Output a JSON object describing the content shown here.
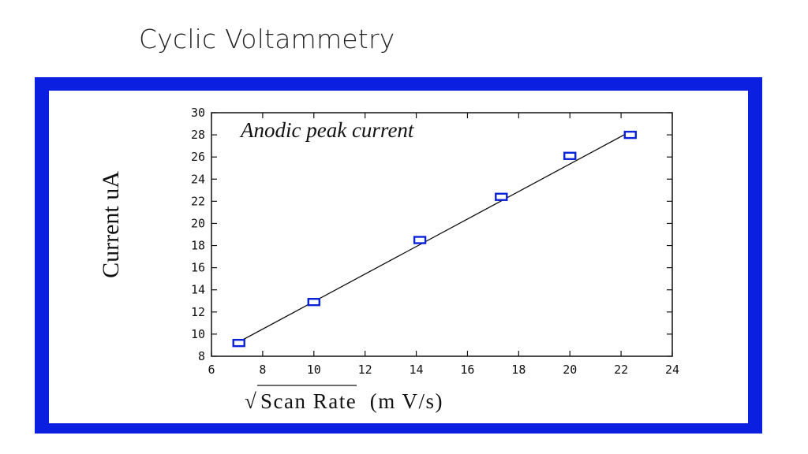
{
  "slide": {
    "title": "Cyclic Voltammetry"
  },
  "colors": {
    "frame": "#0b1fe0",
    "marker": "#0a22d8",
    "line": "#111111"
  },
  "chart_data": {
    "type": "scatter",
    "title": "Anodic peak current",
    "xlabel": "Scan Rate  (m V/s)",
    "xlabel_prefix": "√",
    "ylabel": "Current uA",
    "xlim": [
      6,
      24
    ],
    "ylim": [
      8,
      30
    ],
    "xticks": [
      6,
      8,
      10,
      12,
      14,
      16,
      18,
      20,
      22,
      24
    ],
    "yticks": [
      8,
      10,
      12,
      14,
      16,
      18,
      20,
      22,
      24,
      26,
      28,
      30
    ],
    "grid": false,
    "series": [
      {
        "marker": "open-square",
        "x": [
          7.07,
          10.0,
          14.14,
          17.32,
          20.0,
          22.36
        ],
        "y": [
          9.2,
          12.9,
          18.5,
          22.4,
          26.1,
          28.0
        ]
      }
    ],
    "fit_line": {
      "x": [
        7.07,
        22.36
      ],
      "y": [
        9.3,
        28.3
      ]
    }
  }
}
